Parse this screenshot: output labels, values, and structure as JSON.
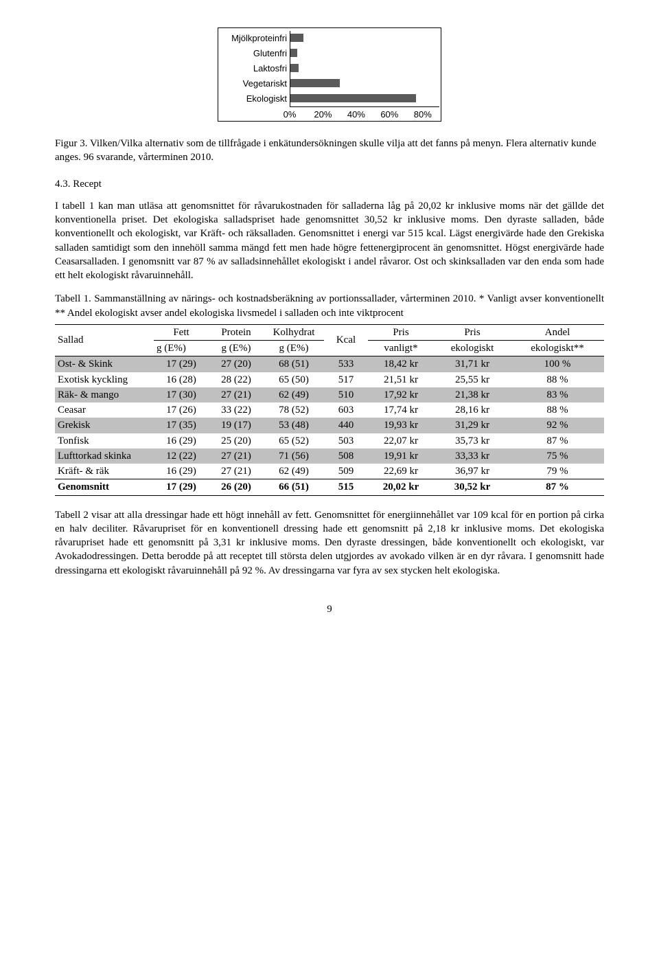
{
  "chart": {
    "type": "bar",
    "categories": [
      "Mjölkproteinfri",
      "Glutenfri",
      "Laktosfri",
      "Vegetariskt",
      "Ekologiskt"
    ],
    "values_pct": [
      8,
      4,
      5,
      30,
      76
    ],
    "bar_color": "#5a5a5a",
    "border_color": "#000000",
    "xlim_pct": [
      0,
      90
    ],
    "xticks": [
      "0%",
      "20%",
      "40%",
      "60%",
      "80%"
    ],
    "xtick_positions_pct": [
      0,
      20,
      40,
      60,
      80
    ],
    "label_fontfamily": "Arial",
    "label_fontsize": 13
  },
  "caption1": "Figur 3. Vilken/Vilka alternativ som de tillfrågade i enkätundersökningen skulle vilja att det fanns på menyn. Flera alternativ kunde anges. 96 svarande, vårterminen 2010.",
  "section43_heading": "4.3. Recept",
  "section43_p1": "I tabell 1 kan man utläsa att genomsnittet för råvarukostnaden för salladerna låg på 20,02 kr inklusive moms när det gällde det konventionella priset. Det ekologiska salladspriset hade genomsnittet 30,52 kr inklusive moms. Den dyraste salladen, både konventionellt och ekologiskt, var Kräft- och räksalladen. Genomsnittet i energi var 515 kcal. Lägst energivärde hade den Grekiska salladen samtidigt som den innehöll samma mängd fett men hade högre fettenergiprocent än genomsnittet. Högst energivärde hade Ceasarsalladen. I genomsnitt var 87 % av salladsinnehållet ekologiskt i andel råvaror. Ost och skinksalladen var den enda som hade ett helt ekologiskt råvaruinnehåll.",
  "table1_caption": "Tabell 1. Sammanställning av närings- och kostnadsberäkning av portionssallader, vårterminen 2010. * Vanligt avser konventionellt ** Andel ekologiskt avser andel ekologiska livsmedel i salladen och inte viktprocent",
  "table1": {
    "columns": [
      {
        "h1": "Sallad",
        "h2": ""
      },
      {
        "h1": "Fett",
        "h2": "g (E%)"
      },
      {
        "h1": "Protein",
        "h2": "g (E%)"
      },
      {
        "h1": "Kolhydrat",
        "h2": "g (E%)"
      },
      {
        "h1": "Kcal",
        "h2": ""
      },
      {
        "h1": "Pris",
        "h2": "vanligt*"
      },
      {
        "h1": "Pris",
        "h2": "ekologiskt"
      },
      {
        "h1": "Andel",
        "h2": "ekologiskt**"
      }
    ],
    "col_widths_pct": [
      18,
      10,
      10,
      11,
      8,
      12,
      14,
      17
    ],
    "rows": [
      {
        "cells": [
          "Ost- & Skink",
          "17 (29)",
          "27 (20)",
          "68 (51)",
          "533",
          "18,42 kr",
          "31,71 kr",
          "100 %"
        ],
        "shade": true
      },
      {
        "cells": [
          "Exotisk kyckling",
          "16 (28)",
          "28 (22)",
          "65 (50)",
          "517",
          "21,51 kr",
          "25,55 kr",
          "88 %"
        ],
        "shade": false
      },
      {
        "cells": [
          "Räk- & mango",
          "17 (30)",
          "27 (21)",
          "62 (49)",
          "510",
          "17,92 kr",
          "21,38 kr",
          "83 %"
        ],
        "shade": true
      },
      {
        "cells": [
          "Ceasar",
          "17 (26)",
          "33 (22)",
          "78 (52)",
          "603",
          "17,74 kr",
          "28,16 kr",
          "88 %"
        ],
        "shade": false
      },
      {
        "cells": [
          "Grekisk",
          "17 (35)",
          "19 (17)",
          "53 (48)",
          "440",
          "19,93 kr",
          "31,29 kr",
          "92 %"
        ],
        "shade": true
      },
      {
        "cells": [
          "Tonfisk",
          "16 (29)",
          "25 (20)",
          "65 (52)",
          "503",
          "22,07 kr",
          "35,73 kr",
          "87 %"
        ],
        "shade": false
      },
      {
        "cells": [
          "Lufttorkad skinka",
          "12 (22)",
          "27 (21)",
          "71 (56)",
          "508",
          "19,91 kr",
          "33,33 kr",
          "75 %"
        ],
        "shade": true
      },
      {
        "cells": [
          "Kräft- & räk",
          "16 (29)",
          "27 (21)",
          "62 (49)",
          "509",
          "22,69 kr",
          "36,97 kr",
          "79 %"
        ],
        "shade": false
      }
    ],
    "summary": [
      "Genomsnitt",
      "17 (29)",
      "26 (20)",
      "66 (51)",
      "515",
      "20,02 kr",
      "30,52 kr",
      "87 %"
    ]
  },
  "section43_p2": "Tabell 2 visar att alla dressingar hade ett högt innehåll av fett. Genomsnittet för energiinnehållet var 109 kcal för en portion på cirka en halv deciliter. Råvarupriset för en konventionell dressing hade ett genomsnitt på 2,18 kr inklusive moms. Det ekologiska råvarupriset hade ett genomsnitt på 3,31 kr inklusive moms. Den dyraste dressingen, både konventionellt och ekologiskt, var Avokadodressingen. Detta berodde på att receptet till största delen utgjordes av avokado vilken är en dyr råvara. I genomsnitt hade dressingarna ett ekologiskt råvaruinnehåll på 92 %. Av dressingarna var fyra av sex stycken helt ekologiska.",
  "page_number": "9"
}
